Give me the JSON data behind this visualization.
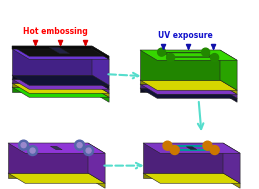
{
  "bg_color": "#ffffff",
  "arrow_cyan": "#55ddcc",
  "arrow_red": "#dd0000",
  "arrow_blue": "#1111aa",
  "label1": "Hot embossing",
  "label1_color": "#ff0000",
  "label2": "UV exposure",
  "label2_color": "#1111cc",
  "colors": {
    "green_bright": "#33dd00",
    "green_dark": "#22aa00",
    "yellow": "#dddd00",
    "purple_light": "#9966dd",
    "purple_mid": "#7744cc",
    "purple_dark": "#5522aa",
    "navy": "#111133",
    "navy_dark": "#0a0a22",
    "black_top": "#111111",
    "slot_dark": "#222244",
    "teal": "#009999",
    "orange": "#cc7700",
    "via_outer": "#5566aa",
    "via_inner": "#9988cc"
  }
}
